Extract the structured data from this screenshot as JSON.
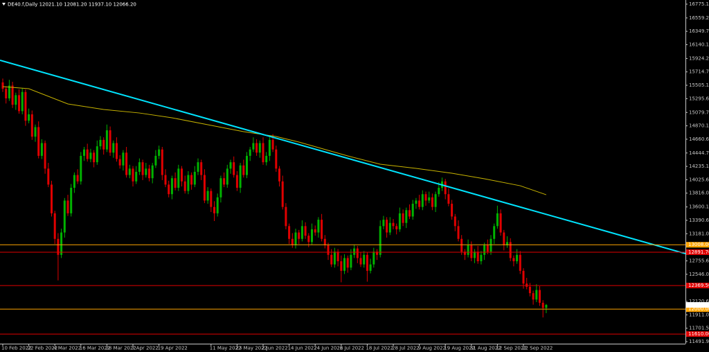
{
  "chart_data": {
    "type": "candlestick",
    "header": "DE40.f,Daily  12021.10 12081.20 11937.10 12066.20",
    "bull_color": "#00b300",
    "bear_color": "#e00000",
    "ylim": [
      11470,
      16840
    ],
    "yticks": [
      {
        "value": 16775.15,
        "label": "16775.15"
      },
      {
        "value": 16559.25,
        "label": "16559.25"
      },
      {
        "value": 16349.7,
        "label": "16349.70"
      },
      {
        "value": 16140.15,
        "label": "16140.15"
      },
      {
        "value": 15924.25,
        "label": "15924.25"
      },
      {
        "value": 15714.7,
        "label": "15714.70"
      },
      {
        "value": 15505.15,
        "label": "15505.15"
      },
      {
        "value": 15295.6,
        "label": "15295.60"
      },
      {
        "value": 15079.7,
        "label": "15079.70"
      },
      {
        "value": 14870.15,
        "label": "14870.15"
      },
      {
        "value": 14660.6,
        "label": "14660.60"
      },
      {
        "value": 14444.7,
        "label": "14444.70"
      },
      {
        "value": 14235.15,
        "label": "14235.15"
      },
      {
        "value": 14025.6,
        "label": "14025.60"
      },
      {
        "value": 13816.05,
        "label": "13816.05"
      },
      {
        "value": 13600.15,
        "label": "13600.15"
      },
      {
        "value": 13390.6,
        "label": "13390.60"
      },
      {
        "value": 13181.05,
        "label": "13181.05"
      },
      {
        "value": 12755.6,
        "label": "12755.60"
      },
      {
        "value": 12546.05,
        "label": "12546.05"
      },
      {
        "value": 12120.6,
        "label": "12120.60"
      },
      {
        "value": 11911.05,
        "label": "11911.05"
      },
      {
        "value": 11701.5,
        "label": "11701.50"
      },
      {
        "value": 11491.95,
        "label": "11491.95"
      }
    ],
    "categories": [
      "10 Feb 2022",
      null,
      null,
      null,
      null,
      null,
      null,
      null,
      "22 Feb 2022",
      null,
      null,
      null,
      null,
      null,
      null,
      null,
      "4 Mar 2022",
      null,
      null,
      null,
      null,
      null,
      null,
      null,
      "16 Mar 2022",
      null,
      null,
      null,
      null,
      null,
      null,
      null,
      "28 Mar 2022",
      null,
      null,
      null,
      null,
      null,
      null,
      null,
      "7 Apr 2022",
      null,
      null,
      null,
      null,
      null,
      null,
      null,
      "19 Apr 2022",
      null,
      null,
      null,
      null,
      null,
      null,
      null,
      null,
      null,
      null,
      null,
      null,
      null,
      null,
      null,
      "11 May 2022",
      null,
      null,
      null,
      null,
      null,
      null,
      null,
      "23 May 2022",
      null,
      null,
      null,
      null,
      null,
      null,
      null,
      "2 Jun 2022",
      null,
      null,
      null,
      null,
      null,
      null,
      null,
      "14 Jun 2022",
      null,
      null,
      null,
      null,
      null,
      null,
      null,
      "24 Jun 2022",
      null,
      null,
      null,
      null,
      null,
      null,
      null,
      "6 Jul 2022",
      null,
      null,
      null,
      null,
      null,
      null,
      null,
      "18 Jul 2022",
      null,
      null,
      null,
      null,
      null,
      null,
      null,
      "28 Jul 2022",
      null,
      null,
      null,
      null,
      null,
      null,
      null,
      "9 Aug 2022",
      null,
      null,
      null,
      null,
      null,
      null,
      null,
      "19 Aug 2022",
      null,
      null,
      null,
      null,
      null,
      null,
      null,
      "31 Aug 2022",
      null,
      null,
      null,
      null,
      null,
      null,
      null,
      "12 Sep 2022",
      null,
      null,
      null,
      null,
      null,
      null,
      null,
      "22 Sep 2022",
      null,
      null,
      null,
      null,
      null,
      null,
      null
    ],
    "open": [
      15550,
      15450,
      15300,
      15500,
      15200,
      15350,
      15100,
      15400,
      14950,
      15050,
      14700,
      14850,
      14400,
      14600,
      14200,
      13950,
      13500,
      13100,
      12850,
      13200,
      13700,
      13500,
      13900,
      14100,
      14000,
      14400,
      14500,
      14350,
      14450,
      14300,
      14550,
      14650,
      14500,
      14800,
      14450,
      14600,
      14350,
      14250,
      14450,
      14100,
      14200,
      14000,
      14150,
      14300,
      14100,
      14200,
      14050,
      14250,
      14400,
      14500,
      14100,
      13950,
      13800,
      14050,
      13900,
      14200,
      14000,
      13850,
      14100,
      13950,
      14150,
      14300,
      14100,
      13700,
      13850,
      13600,
      13500,
      13750,
      14050,
      13950,
      14200,
      14300,
      14100,
      13900,
      14250,
      14100,
      14400,
      14500,
      14600,
      14450,
      14600,
      14300,
      14400,
      14650,
      14500,
      14200,
      14000,
      13600,
      13300,
      13100,
      13000,
      13200,
      13100,
      13300,
      13150,
      13050,
      13250,
      13200,
      13400,
      13100,
      13000,
      12850,
      12700,
      12900,
      12750,
      12600,
      12800,
      12650,
      12850,
      12950,
      12800,
      12700,
      12850,
      12600,
      12700,
      12900,
      12850,
      13300,
      13400,
      13200,
      13350,
      13300,
      13250,
      13500,
      13350,
      13550,
      13450,
      13650,
      13700,
      13600,
      13800,
      13700,
      13750,
      13600,
      13800,
      13900,
      14000,
      13800,
      13650,
      13450,
      13300,
      13100,
      12900,
      12850,
      13000,
      12800,
      12900,
      12750,
      12850,
      13000,
      12900,
      13100,
      13300,
      13500,
      13200,
      13000,
      13050,
      12800,
      12750,
      12850,
      12600,
      12400,
      12350,
      12250,
      12150,
      12300,
      12100,
      12021.1
    ],
    "high": [
      15610,
      15490,
      15590,
      15560,
      15390,
      15440,
      15460,
      15440,
      15140,
      15110,
      14890,
      14940,
      14660,
      14640,
      14290,
      14010,
      13540,
      13190,
      13260,
      13740,
      13790,
      13960,
      14140,
      14190,
      14460,
      14540,
      14590,
      14510,
      14490,
      14640,
      14710,
      14690,
      14890,
      14860,
      14640,
      14690,
      14410,
      14490,
      14540,
      14260,
      14240,
      14240,
      14360,
      14340,
      14290,
      14260,
      14290,
      14490,
      14560,
      14540,
      14190,
      14010,
      14090,
      14140,
      14260,
      14240,
      14090,
      14160,
      14140,
      14240,
      14360,
      14340,
      14190,
      13910,
      13890,
      13690,
      13810,
      14090,
      14140,
      14260,
      14340,
      14390,
      14160,
      14290,
      14340,
      14460,
      14540,
      14690,
      14660,
      14640,
      14690,
      14460,
      14690,
      14740,
      14560,
      14240,
      14090,
      13660,
      13340,
      13190,
      13260,
      13240,
      13390,
      13360,
      13190,
      13340,
      13310,
      13440,
      13490,
      13160,
      13040,
      12940,
      12960,
      12940,
      12840,
      12860,
      12840,
      12940,
      13010,
      12990,
      12890,
      12910,
      12890,
      12790,
      12960,
      12940,
      13390,
      13460,
      13440,
      13440,
      13410,
      13340,
      13590,
      13560,
      13590,
      13640,
      13710,
      13740,
      13790,
      13860,
      13840,
      13840,
      13810,
      13840,
      13990,
      14060,
      14040,
      13890,
      13710,
      13490,
      13390,
      13160,
      12940,
      13090,
      13060,
      12940,
      12990,
      12910,
      13040,
      13090,
      13160,
      13340,
      13620,
      13560,
      13240,
      13140,
      13110,
      12840,
      12940,
      12910,
      12640,
      12490,
      12410,
      12290,
      12390,
      12360,
      12140,
      12081.2
    ],
    "low": [
      15400,
      15220,
      15260,
      15150,
      15120,
      15060,
      15050,
      14870,
      14910,
      14650,
      14620,
      14360,
      14350,
      14120,
      13910,
      13450,
      13020,
      12450,
      12800,
      13120,
      13460,
      13450,
      13820,
      13960,
      13950,
      14320,
      14310,
      14300,
      14220,
      14260,
      14500,
      14420,
      14460,
      14400,
      14370,
      14310,
      14200,
      14170,
      14060,
      14050,
      13920,
      13960,
      14100,
      14020,
      14060,
      14000,
      13970,
      14210,
      14350,
      14020,
      13910,
      13750,
      13720,
      13860,
      13850,
      13920,
      13810,
      13800,
      13870,
      13910,
      14100,
      14020,
      13660,
      13650,
      13520,
      13380,
      13450,
      13670,
      13910,
      13900,
      14120,
      14060,
      13850,
      13820,
      14060,
      14050,
      14320,
      14460,
      14400,
      14370,
      14260,
      14250,
      14320,
      14460,
      14150,
      13920,
      13560,
      13250,
      13020,
      12960,
      12950,
      13020,
      13060,
      13100,
      12970,
      13010,
      13150,
      13120,
      13060,
      12950,
      12770,
      12660,
      12650,
      12670,
      12420,
      12550,
      12570,
      12610,
      12800,
      12720,
      12660,
      12650,
      12430,
      12560,
      12650,
      12770,
      12810,
      13250,
      13120,
      13160,
      13250,
      13170,
      13210,
      13300,
      13270,
      13410,
      13400,
      13570,
      13560,
      13550,
      13620,
      13660,
      13550,
      13520,
      13760,
      13850,
      13720,
      13610,
      13400,
      13220,
      13060,
      12850,
      12770,
      12810,
      12750,
      12720,
      12710,
      12700,
      12770,
      12860,
      12850,
      13020,
      13260,
      13150,
      12920,
      12960,
      12750,
      12670,
      12710,
      12550,
      12320,
      12310,
      12200,
      12070,
      12110,
      12050,
      11870,
      11937.1
    ],
    "close": [
      15450,
      15300,
      15500,
      15200,
      15350,
      15100,
      15400,
      14950,
      15050,
      14700,
      14850,
      14400,
      14600,
      14200,
      13950,
      13500,
      13100,
      12850,
      13200,
      13700,
      13500,
      13900,
      14100,
      14000,
      14400,
      14500,
      14350,
      14450,
      14300,
      14550,
      14650,
      14500,
      14800,
      14450,
      14600,
      14350,
      14250,
      14450,
      14100,
      14200,
      14000,
      14150,
      14300,
      14100,
      14200,
      14050,
      14250,
      14400,
      14500,
      14100,
      13950,
      13800,
      14050,
      13900,
      14200,
      14000,
      13850,
      14100,
      13950,
      14150,
      14300,
      14100,
      13700,
      13850,
      13600,
      13500,
      13750,
      14050,
      13950,
      14200,
      14300,
      14100,
      13900,
      14250,
      14100,
      14400,
      14500,
      14600,
      14450,
      14600,
      14300,
      14400,
      14650,
      14500,
      14200,
      14000,
      13600,
      13300,
      13100,
      13000,
      13200,
      13100,
      13300,
      13150,
      13050,
      13250,
      13200,
      13400,
      13100,
      13000,
      12850,
      12700,
      12900,
      12750,
      12600,
      12800,
      12650,
      12850,
      12950,
      12800,
      12700,
      12850,
      12600,
      12700,
      12900,
      12850,
      13300,
      13400,
      13200,
      13350,
      13300,
      13250,
      13500,
      13350,
      13550,
      13450,
      13650,
      13700,
      13600,
      13800,
      13700,
      13750,
      13600,
      13800,
      13900,
      14000,
      13800,
      13650,
      13450,
      13300,
      13100,
      12900,
      12850,
      13000,
      12800,
      12900,
      12750,
      12850,
      13000,
      12900,
      13100,
      13300,
      13500,
      13200,
      13000,
      13050,
      12800,
      12750,
      12850,
      12600,
      12400,
      12350,
      12250,
      12150,
      12300,
      12100,
      12020,
      12066.2
    ],
    "moving_average": {
      "color": "#c8b400",
      "x": [
        0,
        8,
        20,
        31,
        42,
        52,
        63,
        74,
        84,
        91,
        106,
        116,
        127,
        138,
        148,
        159,
        167
      ],
      "values": [
        15484,
        15451,
        15213,
        15126,
        15071,
        14996,
        14887,
        14779,
        14703,
        14616,
        14399,
        14269,
        14204,
        14128,
        14041,
        13932,
        13791
      ]
    },
    "trendline": {
      "color": "#00e5ff",
      "start": [
        -0.85,
        15896
      ],
      "end": [
        209.8,
        12869
      ]
    },
    "levels": [
      {
        "value": 13008,
        "label": "13008.00",
        "color": "#ffa500"
      },
      {
        "value": 12891.7,
        "label": "12891.70",
        "color": "#e00000"
      },
      {
        "value": 12369.5,
        "label": "12369.50",
        "color": "#e00000"
      },
      {
        "value": 12000,
        "label": "12000.00",
        "color": "#ffa500"
      },
      {
        "value": 11610,
        "label": "11610.00",
        "color": "#e00000"
      }
    ],
    "last_price": {
      "value": 12066.2,
      "label": "12066.20"
    }
  }
}
